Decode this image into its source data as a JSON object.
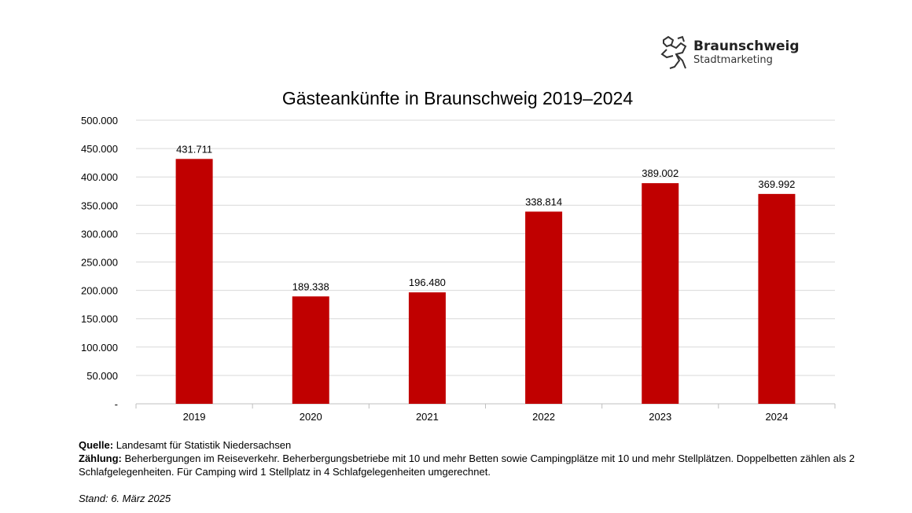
{
  "logo": {
    "brand": "Braunschweig",
    "sub": "Stadtmarketing"
  },
  "chart_data": {
    "type": "bar",
    "title": "Gästeankünfte in Braunschweig 2019–2024",
    "categories": [
      "2019",
      "2020",
      "2021",
      "2022",
      "2023",
      "2024"
    ],
    "values": [
      431711,
      189338,
      196480,
      338814,
      389002,
      369992
    ],
    "data_labels": [
      "431.711",
      "189.338",
      "196.480",
      "338.814",
      "389.002",
      "369.992"
    ],
    "ylim": [
      0,
      500000
    ],
    "yticks": [
      0,
      50000,
      100000,
      150000,
      200000,
      250000,
      300000,
      350000,
      400000,
      450000,
      500000
    ],
    "ytick_labels": [
      "-",
      "50.000",
      "100.000",
      "150.000",
      "200.000",
      "250.000",
      "300.000",
      "350.000",
      "400.000",
      "450.000",
      "500.000"
    ],
    "xlabel": "",
    "ylabel": "",
    "grid": true,
    "bar_color": "#c00000"
  },
  "footer": {
    "source_label": "Quelle:",
    "source_text": " Landesamt für Statistik Niedersachsen",
    "count_label": "Zählung:",
    "count_text": " Beherbergungen im Reiseverkehr. Beherbergungsbetriebe mit 10 und mehr Betten sowie Campingplätze mit 10 und mehr Stellplätzen. Doppelbetten zählen als 2 Schlafgelegenheiten. Für Camping wird 1 Stellplatz in 4 Schlafgelegenheiten umgerechnet.",
    "stand": "Stand: 6. März 2025"
  }
}
